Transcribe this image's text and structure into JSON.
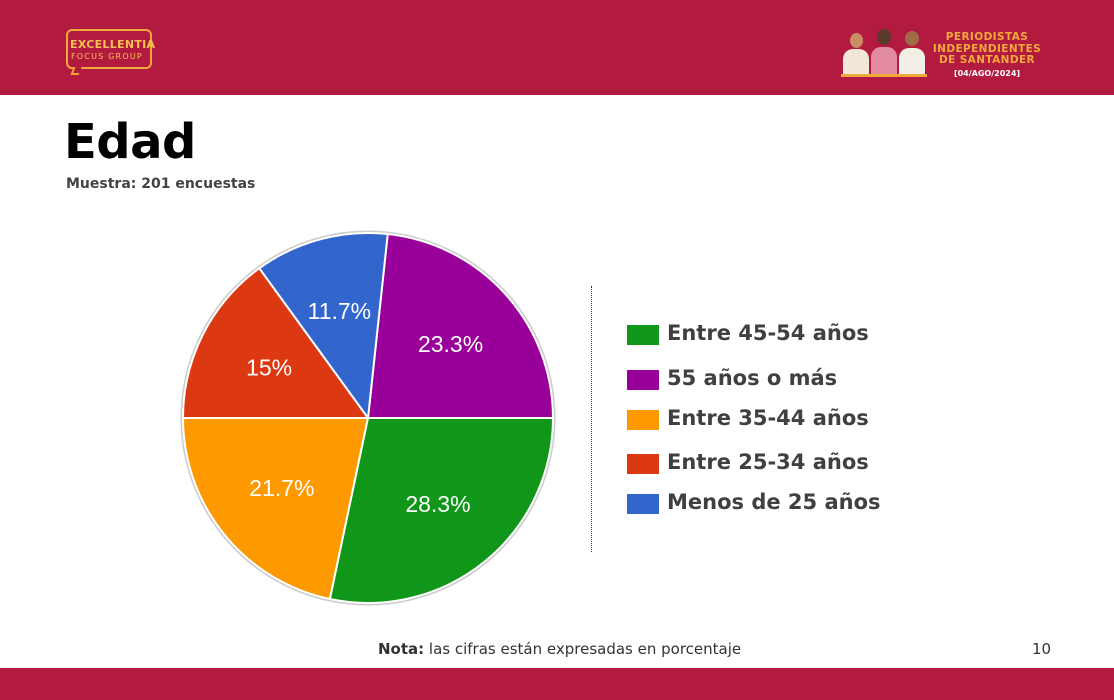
{
  "header": {
    "logo_main": "EXCELLENTIA",
    "logo_sub": "FOCUS GROUP",
    "event_line1": "PERIODISTAS",
    "event_line2": "INDEPENDIENTES",
    "event_line3": "DE SANTANDER",
    "event_date": "[04/AGO/2024]"
  },
  "page": {
    "title": "Edad",
    "subtitle": "Muestra: 201 encuestas",
    "note_bold": "Nota:",
    "note_text": " las cifras están expresadas en porcentaje",
    "page_number": "10"
  },
  "colors": {
    "brand": "#b31a40",
    "accent": "#f2a93b"
  },
  "chart_data": {
    "type": "pie",
    "slices": [
      {
        "label": "55 años o más",
        "value": 23.3,
        "value_label": "23.3%",
        "color": "#990099"
      },
      {
        "label": "Menos de 25 años",
        "value": 11.7,
        "value_label": "11.7%",
        "color": "#3366cc"
      },
      {
        "label": "Entre 25-34 años",
        "value": 15,
        "value_label": "15%",
        "color": "#dc3912"
      },
      {
        "label": "Entre 35-44 años",
        "value": 21.7,
        "value_label": "21.7%",
        "color": "#ff9900"
      },
      {
        "label": "Entre 45-54 años",
        "value": 28.3,
        "value_label": "28.3%",
        "color": "#109618"
      }
    ],
    "legend": [
      {
        "label": "Entre 45-54 años",
        "color": "#109618"
      },
      {
        "label": "55 años o más",
        "color": "#990099"
      },
      {
        "label": "Entre 35-44 años",
        "color": "#ff9900"
      },
      {
        "label": "Entre 25-34 años",
        "color": "#dc3912"
      },
      {
        "label": "Menos de 25 años",
        "color": "#3366cc"
      }
    ],
    "legend_position": "right"
  }
}
